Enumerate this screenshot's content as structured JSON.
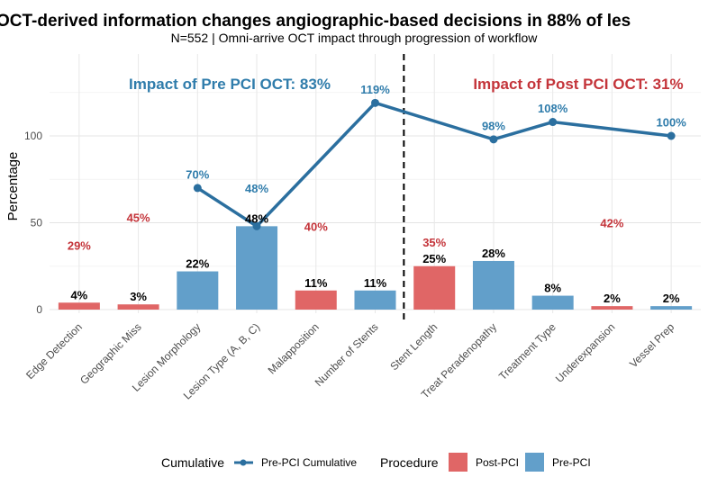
{
  "chart_data": {
    "type": "bar",
    "title": "OCT-derived information changes angiographic-based decisions in 88% of les",
    "subtitle": "N=552 | Omni-arrive OCT impact through progression of workflow",
    "xlabel": "",
    "ylabel": "Percentage",
    "ylim": [
      0,
      150
    ],
    "yticks": [
      0,
      50,
      100
    ],
    "grid": true,
    "categories": [
      "Edge Detection",
      "Geographic Miss",
      "Lesion Morphology",
      "Lesion Type (A, B, C)",
      "Malapposition",
      "Number of Stents",
      "Stent Length",
      "Treat Peradenopathy",
      "Treatment Type",
      "Underexpansion",
      "Vessel Prep"
    ],
    "bars": {
      "values": [
        4,
        3,
        22,
        48,
        11,
        11,
        25,
        28,
        8,
        2,
        2
      ],
      "labels": [
        "4%",
        "3%",
        "22%",
        "48%",
        "11%",
        "11%",
        "25%",
        "28%",
        "8%",
        "2%",
        "2%"
      ],
      "procedure": [
        "Post-PCI",
        "Post-PCI",
        "Pre-PCI",
        "Pre-PCI",
        "Post-PCI",
        "Pre-PCI",
        "Post-PCI",
        "Pre-PCI",
        "Pre-PCI",
        "Post-PCI",
        "Pre-PCI"
      ]
    },
    "pre_pci_cumulative": {
      "name": "Pre-PCI Cumulative",
      "points": [
        {
          "category": "Lesion Morphology",
          "value": 70,
          "label": "70%"
        },
        {
          "category": "Lesion Type (A, B, C)",
          "value": 48,
          "label": "48%"
        },
        {
          "category": "Number of Stents",
          "value": 119,
          "label": "119%"
        },
        {
          "category": "Treat Peradenopathy",
          "value": 98,
          "label": "98%"
        },
        {
          "category": "Treatment Type",
          "value": 108,
          "label": "108%"
        },
        {
          "category": "Vessel Prep",
          "value": 100,
          "label": "100%"
        }
      ]
    },
    "post_pci_cumulative_labels": [
      {
        "category": "Edge Detection",
        "value": 29,
        "label": "29%",
        "label_y": 37
      },
      {
        "category": "Geographic Miss",
        "value": 45,
        "label": "45%",
        "label_y": 53
      },
      {
        "category": "Malapposition",
        "value": 40,
        "label": "40%",
        "label_y": 48
      },
      {
        "category": "Stent Length",
        "value": 35,
        "label": "35%",
        "label_y": 31
      },
      {
        "category": "Underexpansion",
        "value": 42,
        "label": "42%",
        "label_y": 50
      }
    ],
    "divider_after_category": "Number of Stents",
    "annotations": {
      "pre": "Impact of Pre PCI OCT: 83%",
      "post": "Impact of Post PCI OCT: 31%"
    },
    "legend": {
      "position": "bottom",
      "cumulative_title": "Cumulative",
      "cumulative_item": "Pre-PCI Cumulative",
      "procedure_title": "Procedure",
      "procedure_items": [
        "Post-PCI",
        "Pre-PCI"
      ]
    },
    "colors": {
      "Post-PCI": "#e06666",
      "Pre-PCI": "#629fca",
      "line": "#2b6f9f",
      "pre_text": "#2f7cab",
      "post_text": "#c4343a"
    }
  }
}
